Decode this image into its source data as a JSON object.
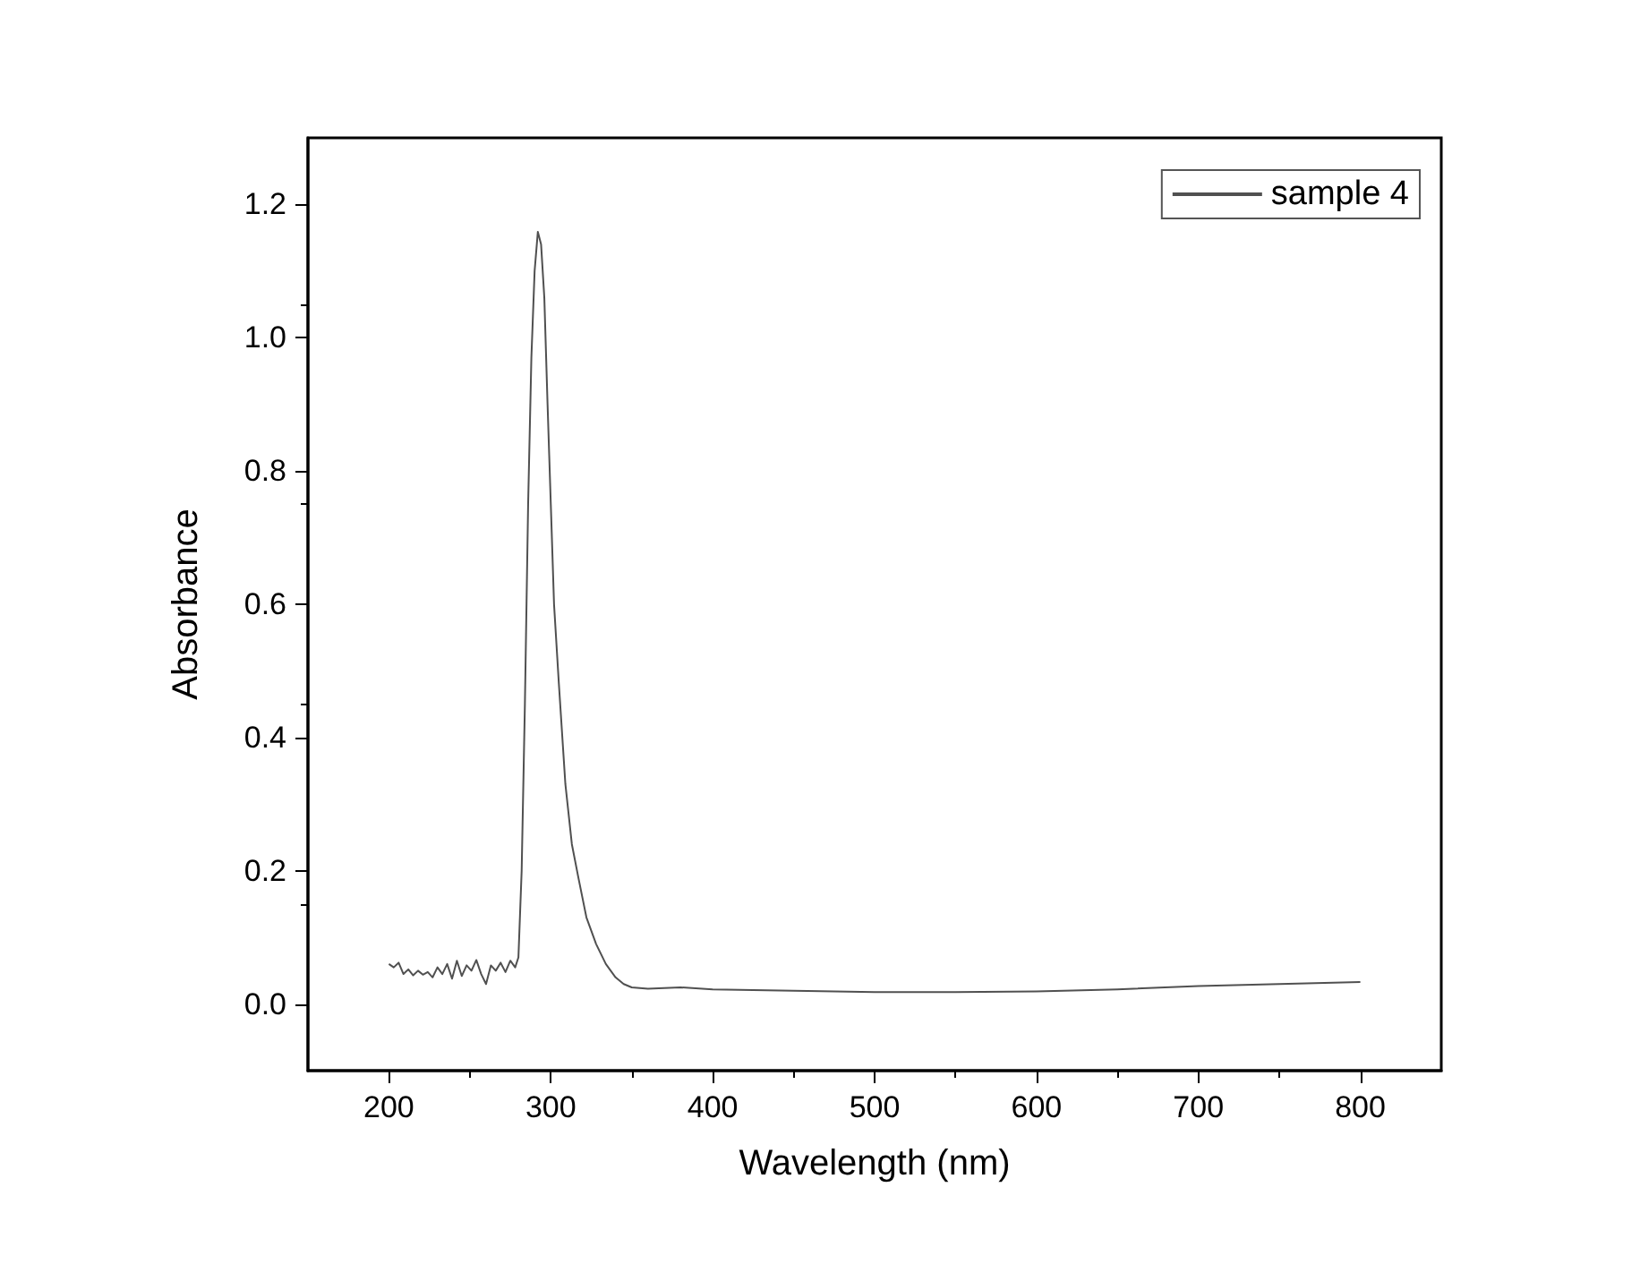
{
  "chart_data": {
    "type": "line",
    "xlabel": "Wavelength (nm)",
    "ylabel": "Absorbance",
    "xlim": [
      150,
      850
    ],
    "xticks": [
      200,
      300,
      400,
      500,
      600,
      700,
      800
    ],
    "ylim": [
      -0.1,
      1.3
    ],
    "yticks": [
      {
        "value": 0,
        "label": "0.0"
      },
      0.2,
      0.4,
      0.6,
      0.8,
      {
        "value": 1,
        "label": "1.0"
      },
      1.2
    ],
    "grid": false,
    "legend": "top right",
    "marker": "none",
    "line_style": "solid",
    "series": [
      {
        "name": "sample 4",
        "color": "#505050",
        "x": [
          200,
          203,
          206,
          209,
          212,
          215,
          218,
          221,
          224,
          227,
          230,
          233,
          236,
          239,
          242,
          245,
          248,
          251,
          254,
          257,
          260,
          263,
          266,
          269,
          272,
          275,
          278,
          280,
          282,
          284,
          286,
          288,
          290,
          292,
          294,
          296,
          298,
          300,
          302,
          305,
          309,
          313,
          317,
          322,
          328,
          334,
          340,
          345,
          350,
          360,
          380,
          400,
          450,
          500,
          550,
          600,
          650,
          700,
          750,
          800
        ],
        "values": [
          0.06,
          0.055,
          0.062,
          0.045,
          0.052,
          0.043,
          0.05,
          0.044,
          0.048,
          0.04,
          0.055,
          0.045,
          0.06,
          0.038,
          0.065,
          0.042,
          0.058,
          0.05,
          0.066,
          0.045,
          0.03,
          0.058,
          0.05,
          0.062,
          0.048,
          0.065,
          0.055,
          0.07,
          0.2,
          0.45,
          0.75,
          0.97,
          1.1,
          1.159,
          1.14,
          1.06,
          0.9,
          0.75,
          0.6,
          0.48,
          0.33,
          0.24,
          0.19,
          0.13,
          0.09,
          0.06,
          0.04,
          0.03,
          0.025,
          0.023,
          0.025,
          0.022,
          0.02,
          0.018,
          0.018,
          0.019,
          0.022,
          0.027,
          0.03,
          0.033
        ]
      }
    ]
  }
}
